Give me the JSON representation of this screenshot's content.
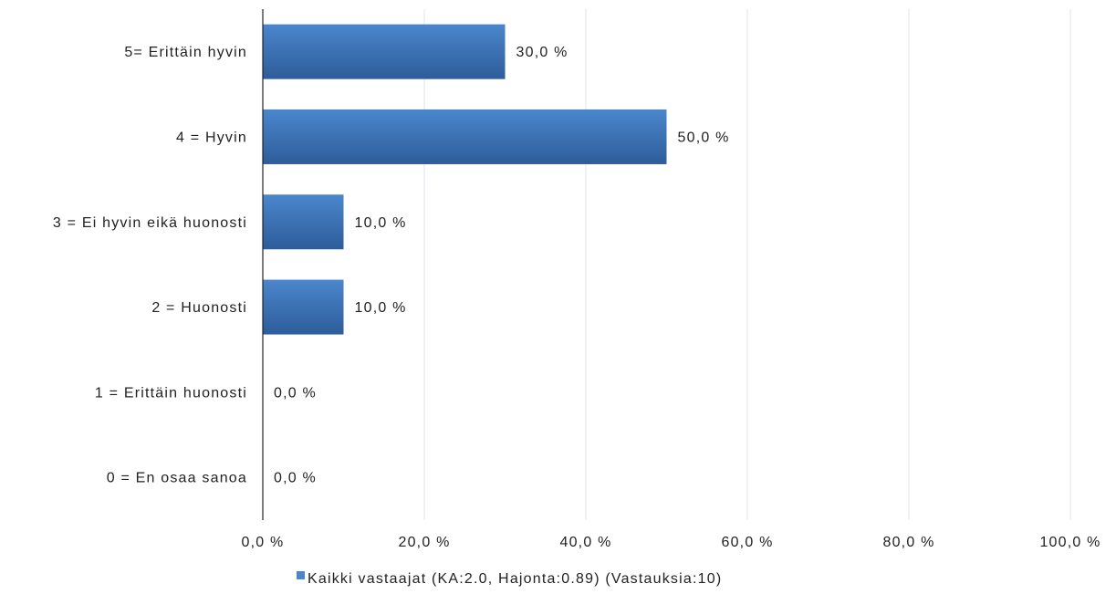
{
  "chart_data": {
    "type": "bar",
    "orientation": "horizontal",
    "categories": [
      "5= Erittäin hyvin",
      "4 = Hyvin",
      "3 = Ei hyvin eikä huonosti",
      "2 = Huonosti",
      "1 = Erittäin huonosti",
      "0 = En osaa sanoa"
    ],
    "series": [
      {
        "name": "Kaikki vastaajat (KA:2.0, Hajonta:0.89) (Vastauksia:10)",
        "values": [
          30.0,
          50.0,
          10.0,
          10.0,
          0.0,
          0.0
        ],
        "data_labels": [
          "30,0 %",
          "50,0 %",
          "10,0 %",
          "10,0 %",
          "0,0 %",
          "0,0 %"
        ]
      }
    ],
    "x_ticks": [
      0,
      20,
      40,
      60,
      80,
      100
    ],
    "x_tick_labels": [
      "0,0 %",
      "20,0 %",
      "40,0 %",
      "60,0 %",
      "80,0 %",
      "100,0 %"
    ],
    "xlim": [
      0,
      100
    ],
    "title": "",
    "xlabel": "",
    "ylabel": "",
    "grid": true,
    "legend_position": "bottom",
    "colors": {
      "bar_light": "#4b86cc",
      "bar_dark": "#2d5d9a",
      "grid": "#dde6ee",
      "axis": "#222222"
    }
  }
}
